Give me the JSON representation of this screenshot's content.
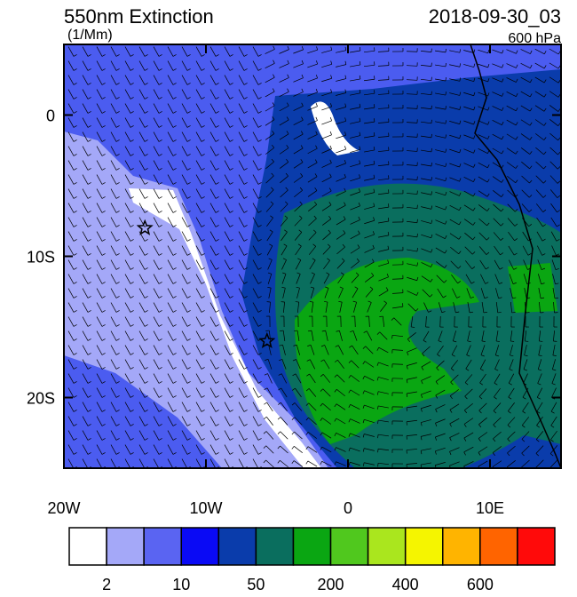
{
  "chart_data": {
    "type": "map",
    "title": "550nm Extinction",
    "units": "(1/Mm)",
    "time": "2018-09-30_03",
    "level": "600 hPa",
    "xlim": [
      -20,
      15
    ],
    "ylim": [
      -25,
      5
    ],
    "xticks": [
      {
        "value": -20,
        "label": "20W"
      },
      {
        "value": -10,
        "label": "10W"
      },
      0,
      {
        "value": 10,
        "label": "10E"
      }
    ],
    "yticks": [
      0,
      {
        "value": -10,
        "label": "10S"
      },
      {
        "value": -20,
        "label": "20S"
      }
    ],
    "markers": {
      "x": [
        -14.3,
        -5.7
      ],
      "y": [
        -8,
        -16
      ]
    },
    "colorbar": {
      "colors": [
        "#ffffff",
        "#a4a8f8",
        "#5a64f2",
        "#0a0af5",
        "#0a3cab",
        "#0a6e5e",
        "#0aa612",
        "#50c81e",
        "#aae61e",
        "#f5f500",
        "#ffb400",
        "#ff6400",
        "#ff0a0a"
      ],
      "ticks": [
        2,
        10,
        50,
        200,
        400,
        600
      ]
    }
  }
}
